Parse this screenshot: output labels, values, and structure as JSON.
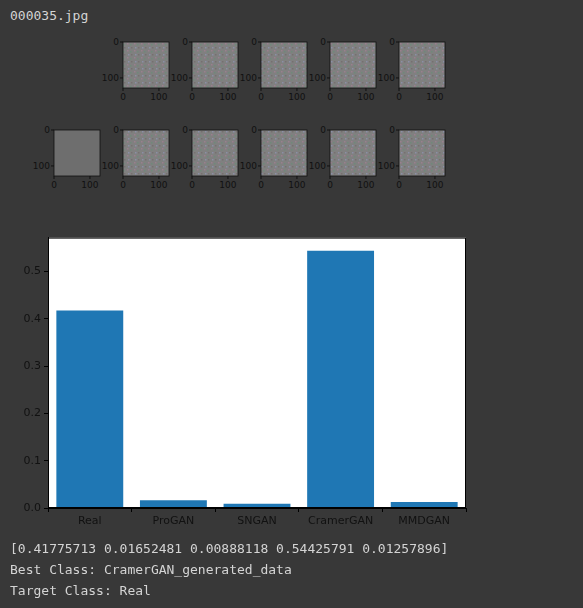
{
  "header": "000035.jpg",
  "thumbnail_ticks": [
    0,
    100
  ],
  "chart_data": {
    "type": "bar",
    "categories": [
      "Real",
      "ProGAN",
      "SNGAN",
      "CramerGAN",
      "MMDGAN"
    ],
    "values": [
      0.41775713,
      0.01652481,
      0.00888118,
      0.54425791,
      0.01257896
    ],
    "color": "#1f77b4",
    "ylim": [
      0,
      0.572
    ],
    "yticks": [
      {
        "value": 0,
        "label": "0.0"
      },
      0.1,
      0.2,
      0.3,
      0.4,
      0.5
    ],
    "grid": false
  },
  "output_lines": [
    "[0.41775713 0.01652481 0.00888118 0.54425791 0.01257896]",
    "Best Class: CramerGAN_generated_data",
    "Target Class: Real"
  ]
}
